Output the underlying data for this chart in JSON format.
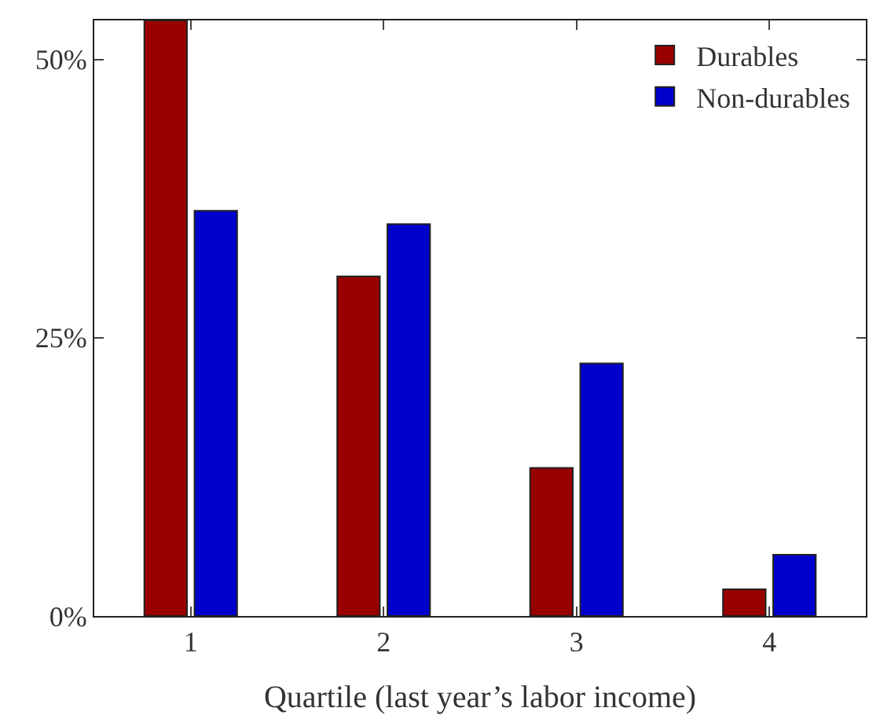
{
  "chart_data": {
    "type": "bar",
    "xlabel": "Quartile (last year’s labor income)",
    "categories": [
      "1",
      "2",
      "3",
      "4"
    ],
    "series": [
      {
        "name": "Durables",
        "color": "#990000",
        "values": [
          53.5,
          30.5,
          13.3,
          2.4
        ]
      },
      {
        "name": "Non-durables",
        "color": "#0000cc",
        "values": [
          36.4,
          35.2,
          22.7,
          5.5
        ]
      }
    ],
    "ylim": [
      0,
      53.5
    ],
    "yticks": [
      {
        "value": 0,
        "label": "0%"
      },
      {
        "value": 25,
        "label": "25%"
      },
      {
        "value": 50,
        "label": "50%"
      }
    ],
    "grid": false,
    "legend": "top right"
  }
}
